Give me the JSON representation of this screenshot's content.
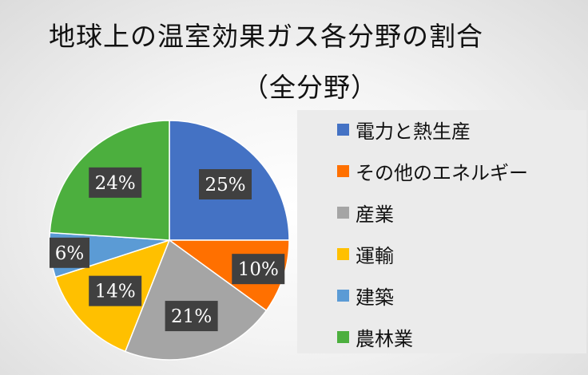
{
  "chart_data": {
    "type": "pie",
    "title_line1": "地球上の温室効果ガス各分野の割合",
    "title_line2": "（全分野）",
    "legend_position": "right",
    "slices": [
      {
        "name": "電力と熱生産",
        "value": 25,
        "label": "25%",
        "color": "#4472c4"
      },
      {
        "name": "その他のエネルギー",
        "value": 10,
        "label": "10%",
        "color": "#ff7000"
      },
      {
        "name": "産業",
        "value": 21,
        "label": "21%",
        "color": "#a5a5a5"
      },
      {
        "name": "運輸",
        "value": 14,
        "label": "14%",
        "color": "#ffc000"
      },
      {
        "name": "建築",
        "value": 6,
        "label": "6%",
        "color": "#5b9bd5"
      },
      {
        "name": "農林業",
        "value": 24,
        "label": "24%",
        "color": "#4caf3e"
      }
    ]
  }
}
